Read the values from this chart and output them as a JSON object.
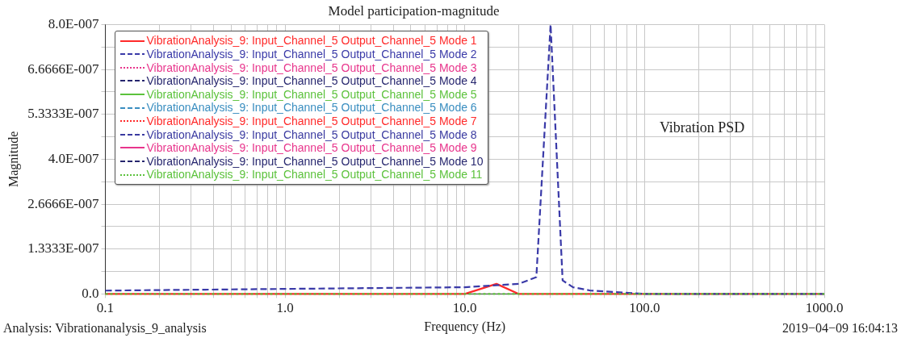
{
  "chart_data": {
    "type": "line",
    "title": "Model participation-magnitude",
    "xlabel": "Frequency (Hz)",
    "ylabel": "Magnitude",
    "annotations": [
      "Analysis: Vibrationanalysis_9_analysis",
      "2019−04−09 16:04:13",
      "Vibration PSD"
    ],
    "log": "x",
    "grid": true,
    "legend": "top left",
    "xlim": [
      0.1,
      1000
    ],
    "xticks": [
      {
        "value": 0.1,
        "label": "0.1"
      },
      {
        "value": 0.2,
        "label": null
      },
      {
        "value": 0.3,
        "label": null
      },
      {
        "value": 0.4,
        "label": null
      },
      {
        "value": 0.5,
        "label": null
      },
      {
        "value": 0.6,
        "label": null
      },
      {
        "value": 0.7,
        "label": null
      },
      {
        "value": 0.8,
        "label": null
      },
      {
        "value": 0.9,
        "label": null
      },
      {
        "value": 1,
        "label": "1.0"
      },
      {
        "value": 2,
        "label": null
      },
      {
        "value": 3,
        "label": null
      },
      {
        "value": 4,
        "label": null
      },
      {
        "value": 5,
        "label": null
      },
      {
        "value": 6,
        "label": null
      },
      {
        "value": 7,
        "label": null
      },
      {
        "value": 8,
        "label": null
      },
      {
        "value": 9,
        "label": null
      },
      {
        "value": 10,
        "label": "10.0"
      },
      {
        "value": 20,
        "label": null
      },
      {
        "value": 30,
        "label": null
      },
      {
        "value": 40,
        "label": null
      },
      {
        "value": 50,
        "label": null
      },
      {
        "value": 60,
        "label": null
      },
      {
        "value": 70,
        "label": null
      },
      {
        "value": 80,
        "label": null
      },
      {
        "value": 90,
        "label": null
      },
      {
        "value": 100,
        "label": "100.0"
      },
      {
        "value": 200,
        "label": null
      },
      {
        "value": 300,
        "label": null
      },
      {
        "value": 400,
        "label": null
      },
      {
        "value": 500,
        "label": null
      },
      {
        "value": 600,
        "label": null
      },
      {
        "value": 700,
        "label": null
      },
      {
        "value": 800,
        "label": null
      },
      {
        "value": 900,
        "label": null
      },
      {
        "value": 1000,
        "label": "1000.0"
      }
    ],
    "ylim": [
      0,
      8e-07
    ],
    "yticks": [
      {
        "value": 0,
        "label": "0.0"
      },
      {
        "value": 6.6667e-08,
        "label": null
      },
      {
        "value": 1.3333e-07,
        "label": "1.3333E-007"
      },
      {
        "value": 2e-07,
        "label": null
      },
      {
        "value": 2.6666e-07,
        "label": "2.6666E-007"
      },
      {
        "value": 3.3333e-07,
        "label": null
      },
      {
        "value": 4e-07,
        "label": "4.0E-007"
      },
      {
        "value": 4.6667e-07,
        "label": null
      },
      {
        "value": 5.3333e-07,
        "label": "5.3333E-007"
      },
      {
        "value": 6e-07,
        "label": null
      },
      {
        "value": 6.6666e-07,
        "label": "6.6666E-007"
      },
      {
        "value": 7.3333e-07,
        "label": null
      },
      {
        "value": 8e-07,
        "label": "8.0E-007"
      }
    ],
    "series": [
      {
        "name": "VibrationAnalysis_9: Input_Channel_5 Output_Channel_5 Mode 1",
        "color": "#ff2a2a",
        "line_style": "solid",
        "x": [
          0.1,
          10,
          15,
          20,
          1000
        ],
        "values": [
          0,
          0,
          3e-08,
          0,
          0
        ]
      },
      {
        "name": "VibrationAnalysis_9: Input_Channel_5 Output_Channel_5 Mode 2",
        "color": "#3a3aa8",
        "line_style": "dashed",
        "x": [
          0.1,
          10,
          20,
          25,
          30,
          35,
          40,
          50,
          100,
          1000
        ],
        "values": [
          1e-08,
          2e-08,
          3e-08,
          5e-08,
          8e-07,
          4e-08,
          2e-08,
          1e-08,
          0,
          0
        ]
      },
      {
        "name": "VibrationAnalysis_9: Input_Channel_5 Output_Channel_5 Mode 3",
        "color": "#e8358c",
        "line_style": "dotted",
        "values": [
          null,
          null
        ]
      },
      {
        "name": "VibrationAnalysis_9: Input_Channel_5 Output_Channel_5 Mode 4",
        "color": "#26266e",
        "line_style": "dashed",
        "values": [
          null,
          null
        ]
      },
      {
        "name": "VibrationAnalysis_9: Input_Channel_5 Output_Channel_5 Mode 5",
        "color": "#5cc23c",
        "line_style": "solid",
        "values": [
          null,
          null
        ]
      },
      {
        "name": "VibrationAnalysis_9: Input_Channel_5 Output_Channel_5 Mode 6",
        "color": "#3a8ec0",
        "line_style": "dashed",
        "values": [
          null,
          null
        ]
      },
      {
        "name": "VibrationAnalysis_9: Input_Channel_5 Output_Channel_5 Mode 7",
        "color": "#ff2a2a",
        "line_style": "dotted",
        "values": [
          null,
          null
        ]
      },
      {
        "name": "VibrationAnalysis_9: Input_Channel_5 Output_Channel_5 Mode 8",
        "color": "#3a3aa0",
        "line_style": "dashed",
        "values": [
          null,
          null
        ]
      },
      {
        "name": "VibrationAnalysis_9: Input_Channel_5 Output_Channel_5 Mode 9",
        "color": "#e8358c",
        "line_style": "solid",
        "values": [
          null,
          null
        ]
      },
      {
        "name": "VibrationAnalysis_9: Input_Channel_5 Output_Channel_5 Mode 10",
        "color": "#26266e",
        "line_style": "dashed",
        "values": [
          null,
          null
        ]
      },
      {
        "name": "VibrationAnalysis_9: Input_Channel_5 Output_Channel_5 Mode 11",
        "color": "#5cc23c",
        "line_style": "dotted",
        "x": [
          0.1,
          1000
        ],
        "values": [
          0,
          0
        ]
      }
    ]
  }
}
